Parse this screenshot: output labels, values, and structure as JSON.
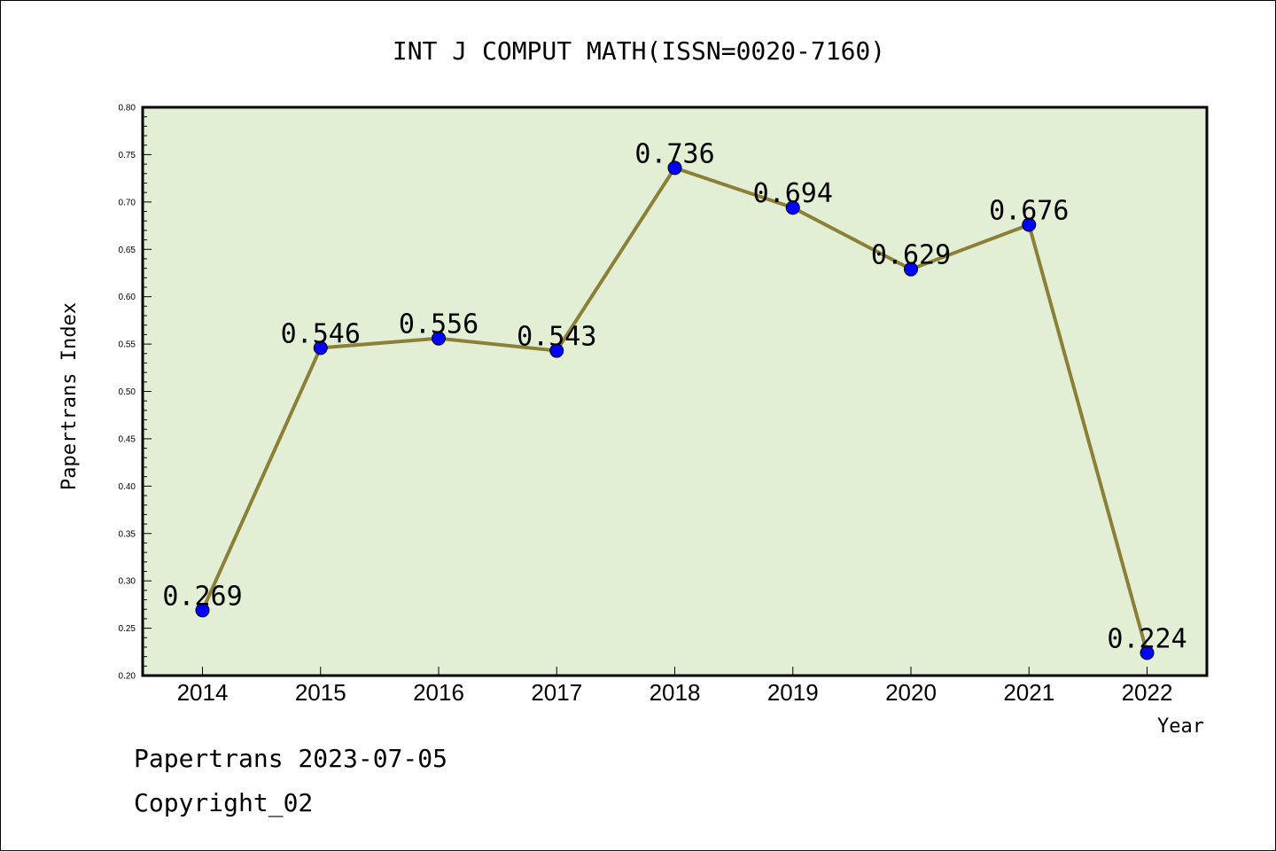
{
  "chart_data": {
    "type": "line",
    "title": "INT J COMPUT MATH(ISSN=0020-7160)",
    "xlabel": "Year",
    "ylabel": "Papertrans Index",
    "categories": [
      "2014",
      "2015",
      "2016",
      "2017",
      "2018",
      "2019",
      "2020",
      "2021",
      "2022"
    ],
    "series": [
      {
        "values": [
          0.269,
          0.546,
          0.556,
          0.543,
          0.736,
          0.694,
          0.629,
          0.676,
          0.224
        ]
      }
    ],
    "data_labels": [
      "0.269",
      "0.546",
      "0.556",
      "0.543",
      "0.736",
      "0.694",
      "0.629",
      "0.676",
      "0.224"
    ],
    "ylim": [
      0.2,
      0.8
    ],
    "yticks": [
      "0.20",
      "0.25",
      "0.30",
      "0.35",
      "0.40",
      "0.45",
      "0.50",
      "0.55",
      "0.60",
      "0.65",
      "0.70",
      "0.75",
      "0.80"
    ],
    "grid": false,
    "legend": "none",
    "colors": {
      "plot_background": "#e2efd5",
      "line": "#8b8038",
      "marker": "#0000ff"
    }
  },
  "footer": {
    "source": "Papertrans 2023-07-05",
    "copyright": "Copyright_02"
  }
}
